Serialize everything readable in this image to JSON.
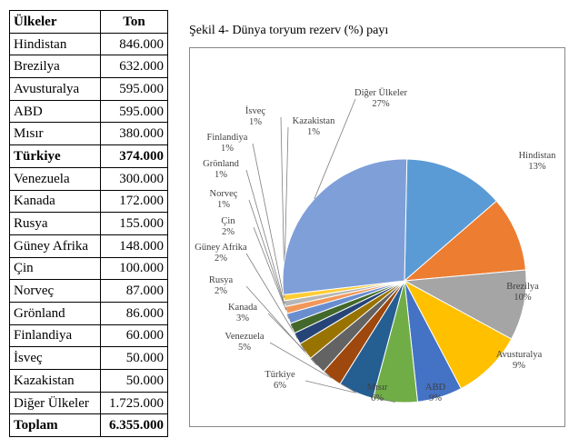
{
  "table": {
    "headers": [
      "Ülkeler",
      "Ton"
    ],
    "rows": [
      {
        "country": "Hindistan",
        "ton": "846.000",
        "bold": false
      },
      {
        "country": "Brezilya",
        "ton": "632.000",
        "bold": false
      },
      {
        "country": "Avusturalya",
        "ton": "595.000",
        "bold": false
      },
      {
        "country": "ABD",
        "ton": "595.000",
        "bold": false
      },
      {
        "country": "Mısır",
        "ton": "380.000",
        "bold": false
      },
      {
        "country": "Türkiye",
        "ton": "374.000",
        "bold": true
      },
      {
        "country": "Venezuela",
        "ton": "300.000",
        "bold": false
      },
      {
        "country": "Kanada",
        "ton": "172.000",
        "bold": false
      },
      {
        "country": "Rusya",
        "ton": "155.000",
        "bold": false
      },
      {
        "country": "Güney Afrika",
        "ton": "148.000",
        "bold": false
      },
      {
        "country": "Çin",
        "ton": "100.000",
        "bold": false
      },
      {
        "country": "Norveç",
        "ton": "87.000",
        "bold": false
      },
      {
        "country": "Grönland",
        "ton": "86.000",
        "bold": false
      },
      {
        "country": "Finlandiya",
        "ton": "60.000",
        "bold": false
      },
      {
        "country": "İsveç",
        "ton": "50.000",
        "bold": false
      },
      {
        "country": "Kazakistan",
        "ton": "50.000",
        "bold": false
      },
      {
        "country": "Diğer Ülkeler",
        "ton": "1.725.000",
        "bold": false
      },
      {
        "country": "Toplam",
        "ton": "6.355.000",
        "bold": true
      }
    ]
  },
  "chart_data": {
    "type": "pie",
    "title": "Şekil 4- Dünya toryum rezerv (%) payı",
    "categories": [
      "Hindistan",
      "Brezilya",
      "Avusturalya",
      "ABD",
      "Mısır",
      "Türkiye",
      "Venezuela",
      "Kanada",
      "Rusya",
      "Güney Afrika",
      "Çin",
      "Norveç",
      "Grönland",
      "Finlandiya",
      "İsveç",
      "Kazakistan",
      "Diğer Ülkeler"
    ],
    "values": [
      846000,
      632000,
      595000,
      595000,
      380000,
      374000,
      300000,
      172000,
      155000,
      148000,
      100000,
      87000,
      86000,
      60000,
      50000,
      50000,
      1725000
    ],
    "percent_labels": [
      "13%",
      "10%",
      "9%",
      "9%",
      "6%",
      "6%",
      "5%",
      "3%",
      "2%",
      "2%",
      "2%",
      "1%",
      "1%",
      "1%",
      "1%",
      "1%",
      "27%"
    ],
    "colors": [
      "#5b9bd5",
      "#ed7d31",
      "#a5a5a5",
      "#ffc000",
      "#4472c4",
      "#70ad47",
      "#255e91",
      "#9e480e",
      "#636363",
      "#997300",
      "#264478",
      "#43682b",
      "#698ed0",
      "#f1975a",
      "#b7b7b7",
      "#ffcd33",
      "#7f9fd8"
    ]
  }
}
